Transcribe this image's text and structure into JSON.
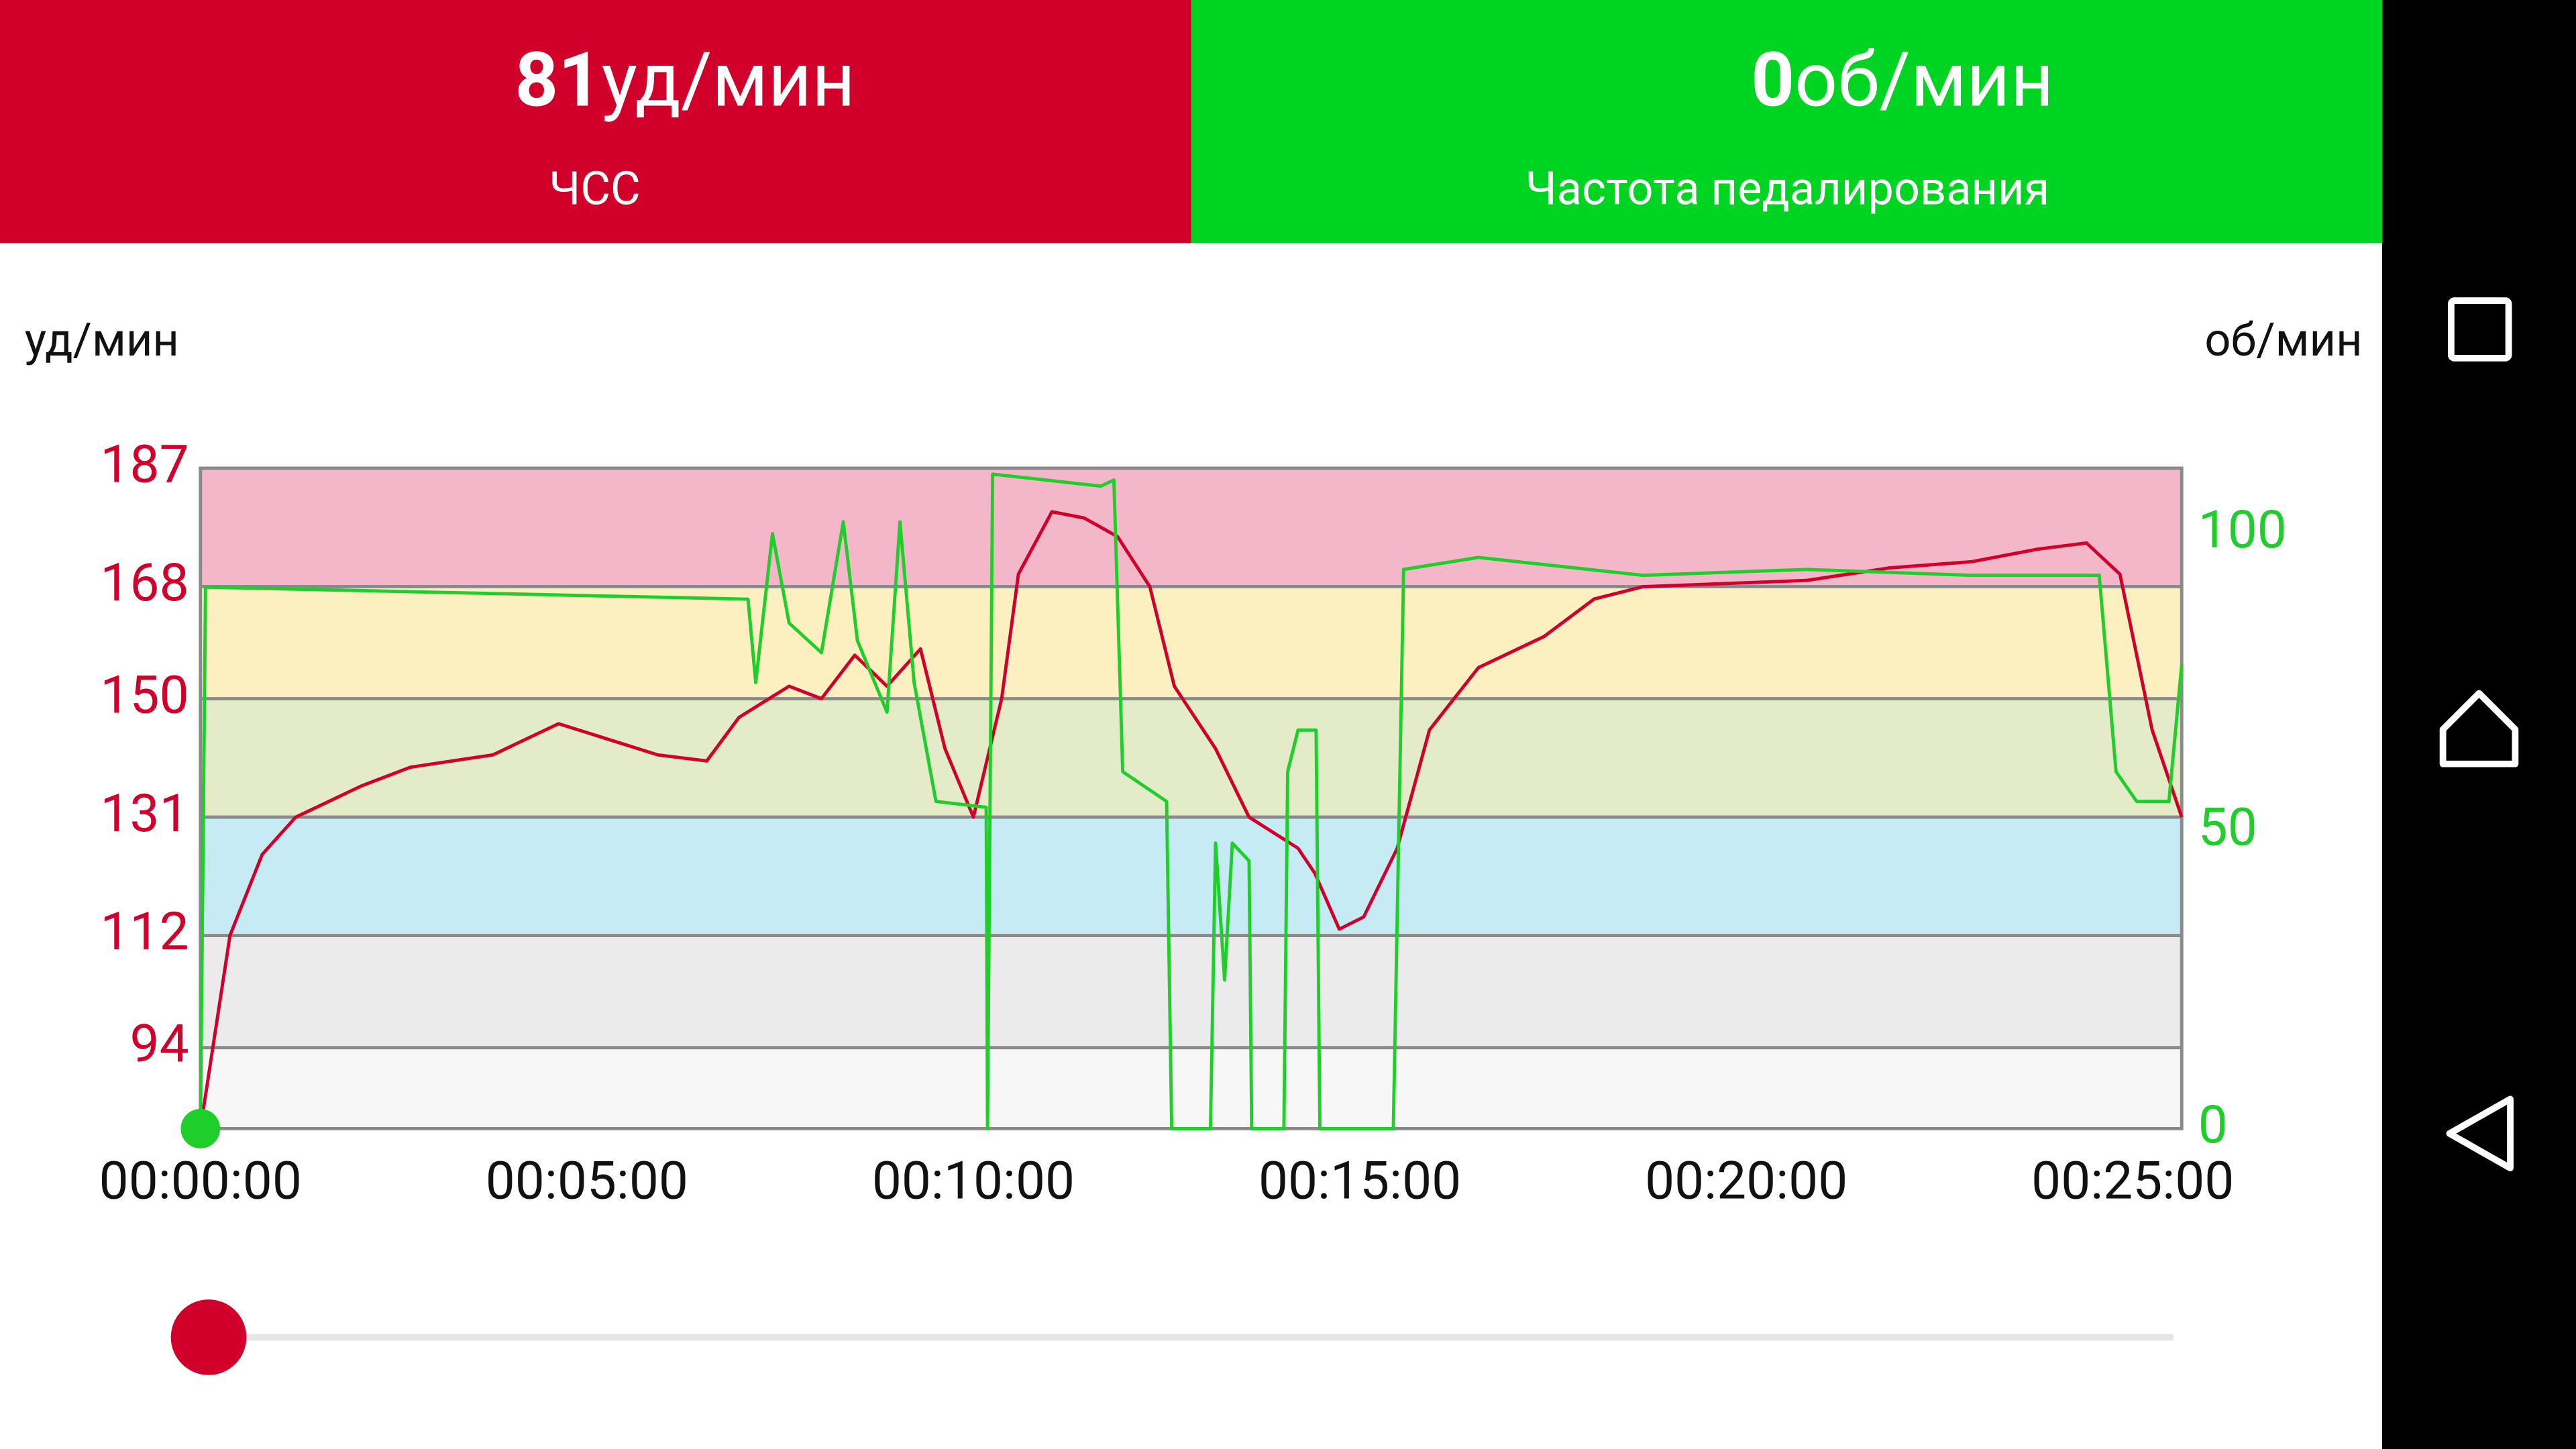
{
  "header": {
    "heart_rate": {
      "value": "81",
      "unit": "уд/мин",
      "label": "ЧСС"
    },
    "cadence": {
      "value": "0",
      "unit": "об/мин",
      "label": "Частота педалирования"
    }
  },
  "chart_data": {
    "type": "line",
    "y_label": "уд/мин",
    "y2_label": "об/мин",
    "xlim": [
      0,
      1538
    ],
    "xticks": [
      {
        "value": 0,
        "label": "00:00:00"
      },
      {
        "value": 300,
        "label": "00:05:00"
      },
      {
        "value": 600,
        "label": "00:10:00"
      },
      {
        "value": 900,
        "label": "00:15:00"
      },
      {
        "value": 1200,
        "label": "00:20:00"
      },
      {
        "value": 1500,
        "label": "00:25:00"
      }
    ],
    "ylim": [
      81,
      187
    ],
    "yticks": [
      94,
      112,
      131,
      150,
      168,
      187
    ],
    "y2lim": [
      0,
      111
    ],
    "y2ticks": [
      0,
      50,
      100
    ],
    "zone_colors": [
      "#f7f7f7",
      "#ebebeb",
      "#c6ebf5",
      "#e3ebc8",
      "#fdf0c0",
      "#f4b6c9"
    ],
    "grid": true,
    "series": [
      {
        "color": "#d0002a",
        "x": [
          0,
          23,
          48,
          74,
          125,
          163,
          227,
          278,
          355,
          393,
          418,
          457,
          482,
          508,
          533,
          559,
          578,
          600,
          622,
          635,
          661,
          686,
          712,
          737,
          756,
          788,
          814,
          852,
          865,
          884,
          903,
          929,
          954,
          992,
          1043,
          1082,
          1120,
          1247,
          1311,
          1375,
          1426,
          1464,
          1490,
          1515,
          1538
        ],
        "values": [
          81,
          112,
          125,
          131,
          136,
          139,
          141,
          146,
          141,
          140,
          147,
          152,
          150,
          157,
          152,
          158,
          142,
          131,
          150,
          170,
          180,
          179,
          176,
          168,
          152,
          142,
          131,
          126,
          122,
          113,
          115,
          126,
          145,
          155,
          160,
          166,
          168,
          169,
          171,
          172,
          174,
          175,
          170,
          145,
          131
        ]
      },
      {
        "color": "#1fce2a",
        "axis": "y2",
        "x": [
          0,
          4,
          425,
          431,
          444,
          457,
          482,
          499,
          510,
          533,
          543,
          554,
          571,
          610,
          611,
          615,
          699,
          709,
          716,
          750,
          754,
          784,
          788,
          795,
          801,
          814,
          816,
          841,
          844,
          852,
          866,
          869,
          926,
          934,
          992,
          1120,
          1247,
          1375,
          1474,
          1487,
          1503,
          1528,
          1538
        ],
        "values": [
          0,
          91,
          89,
          75,
          100,
          85,
          80,
          102,
          82,
          70,
          102,
          75,
          55,
          54,
          0,
          110,
          108,
          109,
          60,
          55,
          0,
          0,
          48,
          25,
          48,
          45,
          0,
          0,
          60,
          67,
          67,
          0,
          0,
          94,
          96,
          93,
          94,
          93,
          93,
          60,
          55,
          55,
          78
        ]
      }
    ]
  }
}
